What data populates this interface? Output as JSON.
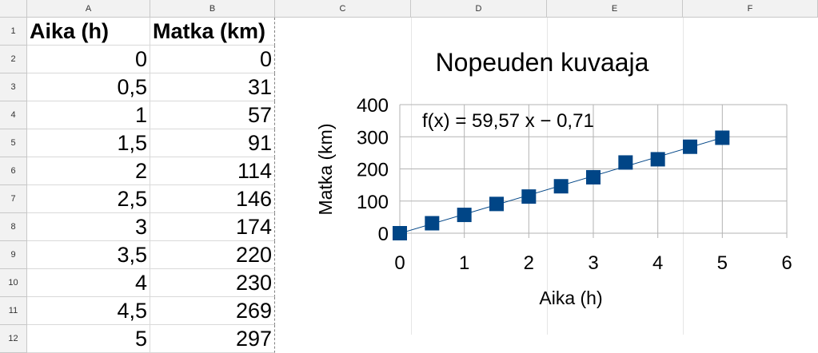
{
  "columns": [
    "A",
    "B",
    "C",
    "D",
    "E",
    "F"
  ],
  "rows": [
    "1",
    "2",
    "3",
    "4",
    "5",
    "6",
    "7",
    "8",
    "9",
    "10",
    "11",
    "12"
  ],
  "table": {
    "headers": [
      "Aika (h)",
      "Matka (km)"
    ],
    "aika": [
      "0",
      "0,5",
      "1",
      "1,5",
      "2",
      "2,5",
      "3",
      "3,5",
      "4",
      "4,5",
      "5"
    ],
    "matka": [
      "0",
      "31",
      "57",
      "91",
      "114",
      "146",
      "174",
      "220",
      "230",
      "269",
      "297"
    ]
  },
  "chart_data": {
    "type": "scatter",
    "title": "Nopeuden kuvaaja",
    "xlabel": "Aika (h)",
    "ylabel": "Matka (km)",
    "xlim": [
      0,
      6
    ],
    "ylim": [
      0,
      400
    ],
    "x_ticks": [
      "0",
      "1",
      "2",
      "3",
      "4",
      "5",
      "6"
    ],
    "y_ticks": [
      "0",
      "100",
      "200",
      "300",
      "400"
    ],
    "x": [
      0,
      0.5,
      1,
      1.5,
      2,
      2.5,
      3,
      3.5,
      4,
      4.5,
      5
    ],
    "y": [
      0,
      31,
      57,
      91,
      114,
      146,
      174,
      220,
      230,
      269,
      297
    ],
    "trendline": {
      "slope": 59.57,
      "intercept": -0.71,
      "equation": "f(x) = 59,57 x − 0,71"
    },
    "marker_color": "#004586",
    "trend_color": "#004586",
    "grid": true,
    "grid_color": "#b3b3b3"
  }
}
